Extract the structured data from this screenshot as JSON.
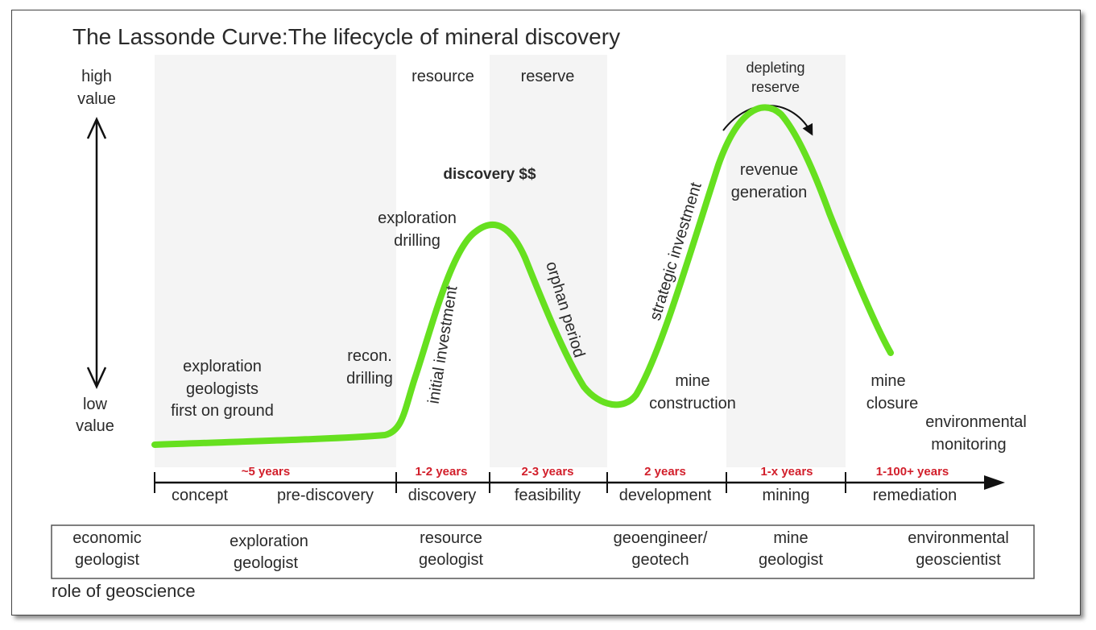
{
  "title": "The Lassonde Curve:The lifecycle of mineral discovery",
  "value_axis": {
    "high": [
      "high",
      "value"
    ],
    "low": [
      "low",
      "value"
    ]
  },
  "colors": {
    "curve": "#66e01f",
    "band": "#f4f4f4",
    "duration": "#d21f2b",
    "line": "#111111"
  },
  "top_labels": {
    "resource": "resource",
    "reserve": "reserve",
    "depleting": [
      "depleting",
      "reserve"
    ],
    "discovery": "discovery $$"
  },
  "annotations": {
    "exploration_geologists": [
      "exploration",
      "geologists",
      "first on ground"
    ],
    "recon_drilling": [
      "recon.",
      "drilling"
    ],
    "exploration_drilling": [
      "exploration",
      "drilling"
    ],
    "initial_investment": "initial investment",
    "orphan_period": "orphan period",
    "strategic_investment": "strategic investment",
    "revenue_generation": [
      "revenue",
      "generation"
    ],
    "mine_construction": [
      "mine",
      "construction"
    ],
    "mine_closure": [
      "mine",
      "closure"
    ],
    "environmental_monitoring": [
      "environmental",
      "monitoring"
    ]
  },
  "phases": [
    {
      "duration": "~5 years",
      "labels": [
        "concept",
        "pre-discovery"
      ]
    },
    {
      "duration": "1-2 years",
      "labels": [
        "discovery"
      ]
    },
    {
      "duration": "2-3 years",
      "labels": [
        "feasibility"
      ]
    },
    {
      "duration": "2 years",
      "labels": [
        "development"
      ]
    },
    {
      "duration": "1-x years",
      "labels": [
        "mining"
      ]
    },
    {
      "duration": "1-100+ years",
      "labels": [
        "remediation"
      ]
    }
  ],
  "roles": [
    [
      "economic",
      "geologist"
    ],
    [
      "exploration",
      "geologist"
    ],
    [
      "resource",
      "geologist"
    ],
    [
      "geoengineer/",
      "geotech"
    ],
    [
      "mine",
      "geologist"
    ],
    [
      "environmental",
      "geoscientist"
    ]
  ],
  "roles_caption": "role of geoscience"
}
